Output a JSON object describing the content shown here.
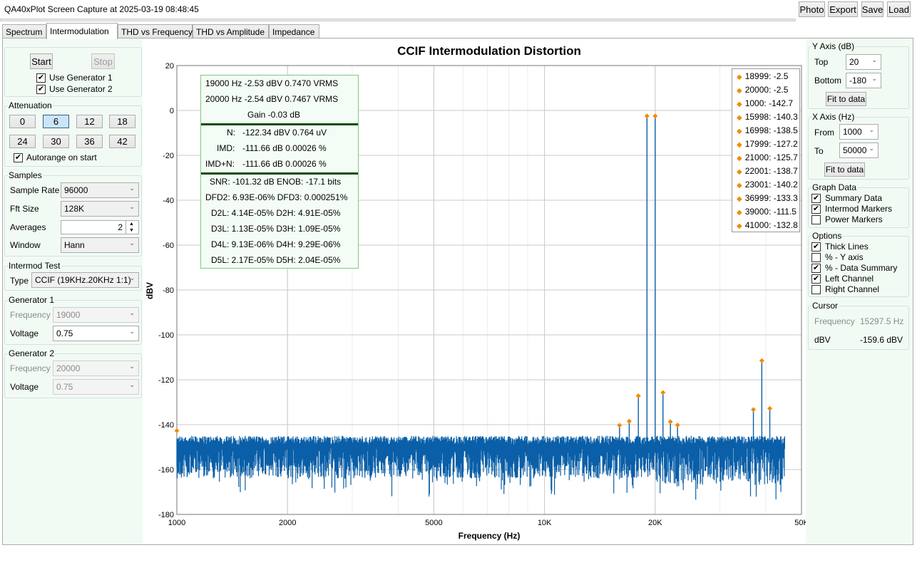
{
  "window": {
    "title": "QA40xPlot Screen Capture at 2025-03-19 08:48:45"
  },
  "toolbar": {
    "photo": "Photo",
    "export": "Export",
    "save": "Save",
    "load": "Load"
  },
  "tabs": [
    {
      "label": "Spectrum"
    },
    {
      "label": "Intermodulation"
    },
    {
      "label": "THD vs Frequency"
    },
    {
      "label": "THD vs Amplitude"
    },
    {
      "label": "Impedance"
    }
  ],
  "run": {
    "start": "Start",
    "stop": "Stop",
    "gen1": "Use Generator 1",
    "gen2": "Use Generator 2"
  },
  "attenuation": {
    "label": "Attenuation",
    "values": [
      "0",
      "6",
      "12",
      "18",
      "24",
      "30",
      "36",
      "42"
    ],
    "autorange": "Autorange on start"
  },
  "samples": {
    "label": "Samples",
    "sample_rate_label": "Sample Rate",
    "sample_rate": "96000",
    "fft_label": "Fft Size",
    "fft": "128K",
    "averages_label": "Averages",
    "averages": "2",
    "window_label": "Window",
    "window": "Hann"
  },
  "intermod": {
    "label": "Intermod Test",
    "type_label": "Type",
    "type": "CCIF (19KHz.20KHz 1:1)"
  },
  "gen1": {
    "label": "Generator 1",
    "freq_label": "Frequency",
    "freq": "19000",
    "volt_label": "Voltage",
    "volt": "0.75"
  },
  "gen2": {
    "label": "Generator 2",
    "freq_label": "Frequency",
    "freq": "20000",
    "volt_label": "Voltage",
    "volt": "0.75"
  },
  "summary": {
    "l1": "19000 Hz   -2.53 dBV   0.7470 VRMS",
    "l2": "20000 Hz   -2.54 dBV   0.7467 VRMS",
    "l3": "Gain -0.03 dB",
    "n_label": "N:",
    "n_val": "-122.34 dBV   0.764 uV",
    "imd_label": "IMD:",
    "imd_val": "-111.66 dB      0.00026 %",
    "imdn_label": "IMD+N:",
    "imdn_val": "-111.66 dB      0.00026 %",
    "snr": "SNR:   -101.32 dB    ENOB:    -17.1 bits",
    "dfd": "DFD2:   6.93E-06%    DFD3:   0.000251%",
    "d2": "D2L:    4.14E-05%        D2H:    4.91E-05%",
    "d3": "D3L:    1.13E-05%        D3H:    1.09E-05%",
    "d4": "D4L:    9.13E-06%        D4H:    9.29E-06%",
    "d5": "D5L:    2.17E-05%        D5H:    2.04E-05%"
  },
  "markers": [
    "18999: -2.5",
    "20000: -2.5",
    "1000: -142.7",
    "15998: -140.3",
    "16998: -138.5",
    "17999: -127.2",
    "21000: -125.7",
    "22001: -138.7",
    "23001: -140.2",
    "36999: -133.3",
    "39000: -111.5",
    "41000: -132.8"
  ],
  "yaxis_panel": {
    "label": "Y Axis (dB)",
    "top_label": "Top",
    "top": "20",
    "bottom_label": "Bottom",
    "bottom": "-180",
    "fit": "Fit to data"
  },
  "xaxis_panel": {
    "label": "X Axis (Hz)",
    "from_label": "From",
    "from": "1000",
    "to_label": "To",
    "to": "50000",
    "fit": "Fit to data"
  },
  "graph_data": {
    "label": "Graph Data",
    "items": [
      {
        "label": "Summary Data",
        "checked": true
      },
      {
        "label": "Intermod Markers",
        "checked": true
      },
      {
        "label": "Power Markers",
        "checked": false
      }
    ]
  },
  "options": {
    "label": "Options",
    "items": [
      {
        "label": "Thick Lines",
        "checked": true
      },
      {
        "label": "% - Y axis",
        "checked": false
      },
      {
        "label": "% - Data Summary",
        "checked": true
      },
      {
        "label": "Left Channel",
        "checked": true
      },
      {
        "label": "Right Channel",
        "checked": false
      }
    ]
  },
  "cursor": {
    "label": "Cursor",
    "freq_label": "Frequency",
    "freq": "15297.5 Hz",
    "dbv_label": "dBV",
    "dbv": "-159.6 dBV"
  },
  "colors": {
    "trace": "#0a5fa8",
    "marker": "#f08c00",
    "summary_border": "#7fc87f"
  },
  "chart_data": {
    "type": "line",
    "title": "CCIF  Intermodulation Distortion",
    "xlabel": "Frequency (Hz)",
    "ylabel": "dBV",
    "xscale": "log",
    "xlim": [
      1000,
      50000
    ],
    "ylim": [
      -180,
      20
    ],
    "xticks": [
      1000,
      2000,
      5000,
      10000,
      20000,
      50000
    ],
    "xtick_labels": [
      "1000",
      "2000",
      "5000",
      "10K",
      "20K",
      "50K"
    ],
    "yticks": [
      20,
      0,
      -20,
      -40,
      -60,
      -80,
      -100,
      -120,
      -140,
      -160,
      -180
    ],
    "grid": true,
    "noise_floor_dbv": -153,
    "series": [
      {
        "values_note": "",
        "points": [
          [
            18999,
            -2.5
          ],
          [
            20000,
            -2.5
          ]
        ]
      }
    ],
    "markers": [
      [
        18999,
        -2.5
      ],
      [
        20000,
        -2.5
      ],
      [
        1000,
        -142.7
      ],
      [
        15998,
        -140.3
      ],
      [
        16998,
        -138.5
      ],
      [
        17999,
        -127.2
      ],
      [
        21000,
        -125.7
      ],
      [
        22001,
        -138.7
      ],
      [
        23001,
        -140.2
      ],
      [
        36999,
        -133.3
      ],
      [
        39000,
        -111.5
      ],
      [
        41000,
        -132.8
      ]
    ]
  }
}
